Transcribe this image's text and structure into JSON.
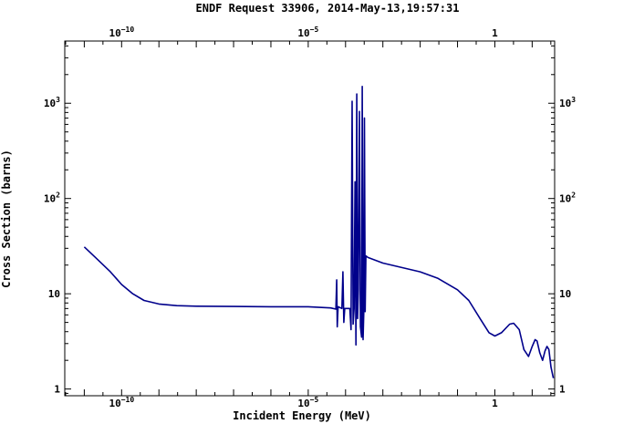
{
  "chart_data": {
    "type": "line",
    "title": "ENDF Request 33906, 2014-May-13,19:57:31",
    "xlabel": "Incident Energy (MeV)",
    "ylabel": "Cross Section (barns)",
    "x_scale": "log",
    "y_scale": "log",
    "xlim": [
      3e-12,
      40
    ],
    "ylim": [
      0.85,
      4500
    ],
    "grid": false,
    "x_ticks": [
      {
        "value": 1e-10,
        "base": "10",
        "exp": "−10"
      },
      {
        "value": 1e-05,
        "base": "10",
        "exp": "−5"
      },
      {
        "value": 1,
        "base": "1",
        "exp": ""
      }
    ],
    "y_ticks": [
      {
        "value": 1,
        "base": "1",
        "exp": ""
      },
      {
        "value": 10,
        "base": "10",
        "exp": ""
      },
      {
        "value": 100,
        "base": "10",
        "exp": "2"
      },
      {
        "value": 1000,
        "base": "10",
        "exp": "3"
      }
    ],
    "series": [
      {
        "color": "#00008b",
        "points": [
          [
            1e-11,
            31
          ],
          [
            2e-11,
            24
          ],
          [
            5e-11,
            17
          ],
          [
            1e-10,
            12.5
          ],
          [
            2e-10,
            10
          ],
          [
            4e-10,
            8.5
          ],
          [
            1e-09,
            7.8
          ],
          [
            3e-09,
            7.5
          ],
          [
            1e-08,
            7.4
          ],
          [
            1e-07,
            7.35
          ],
          [
            1e-06,
            7.3
          ],
          [
            1e-05,
            7.3
          ],
          [
            4e-05,
            7.1
          ],
          [
            5.5e-05,
            6.9
          ],
          [
            5.8e-05,
            14
          ],
          [
            6e-05,
            4.5
          ],
          [
            6.3e-05,
            7.3
          ],
          [
            8e-05,
            7.0
          ],
          [
            8.5e-05,
            17
          ],
          [
            9e-05,
            5.0
          ],
          [
            9.5e-05,
            7.0
          ],
          [
            0.00013,
            7.0
          ],
          [
            0.00014,
            4.2
          ],
          [
            0.00015,
            1050
          ],
          [
            0.00016,
            4.8
          ],
          [
            0.00017,
            7.0
          ],
          [
            0.00018,
            150
          ],
          [
            0.00019,
            2.9
          ],
          [
            0.0002,
            1250
          ],
          [
            0.00021,
            5.5
          ],
          [
            0.00022,
            11
          ],
          [
            0.000235,
            820
          ],
          [
            0.00025,
            4.5
          ],
          [
            0.00027,
            3.5
          ],
          [
            0.00028,
            1500
          ],
          [
            0.000295,
            3.3
          ],
          [
            0.00031,
            7.0
          ],
          [
            0.00032,
            700
          ],
          [
            0.000335,
            6.5
          ],
          [
            0.00035,
            25
          ],
          [
            0.0004,
            24
          ],
          [
            0.001,
            21
          ],
          [
            0.01,
            17
          ],
          [
            0.03,
            14.5
          ],
          [
            0.1,
            11
          ],
          [
            0.2,
            8.5
          ],
          [
            0.4,
            5.5
          ],
          [
            0.7,
            3.9
          ],
          [
            1.0,
            3.6
          ],
          [
            1.5,
            3.9
          ],
          [
            2.5,
            4.8
          ],
          [
            3.2,
            4.9
          ],
          [
            4.5,
            4.2
          ],
          [
            6,
            2.6
          ],
          [
            8,
            2.2
          ],
          [
            10,
            2.8
          ],
          [
            12,
            3.3
          ],
          [
            13.5,
            3.2
          ],
          [
            16,
            2.4
          ],
          [
            19,
            2.0
          ],
          [
            22,
            2.5
          ],
          [
            25,
            2.8
          ],
          [
            28,
            2.6
          ],
          [
            32,
            1.7
          ],
          [
            37,
            1.3
          ]
        ]
      }
    ]
  }
}
